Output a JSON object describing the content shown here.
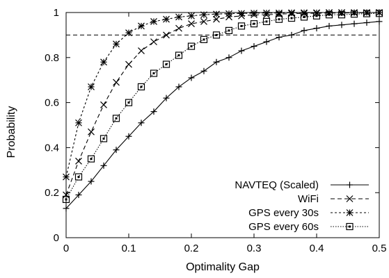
{
  "chart_data": {
    "type": "line",
    "title": "",
    "xlabel": "Optimality Gap",
    "ylabel": "Probability",
    "xlim": [
      0,
      0.5
    ],
    "ylim": [
      0,
      1
    ],
    "xticks": [
      "0",
      "0.1",
      "0.2",
      "0.3",
      "0.4",
      "0.5"
    ],
    "yticks": [
      "0",
      "0.2",
      "0.4",
      "0.6",
      "0.8",
      "1"
    ],
    "grid": false,
    "legend_position": "bottom-right",
    "x": [
      0,
      0.02,
      0.04,
      0.06,
      0.08,
      0.1,
      0.12,
      0.14,
      0.16,
      0.18,
      0.2,
      0.22,
      0.24,
      0.26,
      0.28,
      0.3,
      0.32,
      0.34,
      0.36,
      0.38,
      0.4,
      0.42,
      0.44,
      0.46,
      0.48,
      0.5
    ],
    "reference_line": {
      "y": 0.9,
      "style": "dashed"
    },
    "series": [
      {
        "name": "NAVTEQ (Scaled)",
        "marker": "plus",
        "dash": "none",
        "values": [
          0.13,
          0.19,
          0.25,
          0.32,
          0.39,
          0.45,
          0.51,
          0.56,
          0.62,
          0.67,
          0.71,
          0.74,
          0.78,
          0.8,
          0.83,
          0.85,
          0.87,
          0.89,
          0.9,
          0.92,
          0.93,
          0.94,
          0.945,
          0.95,
          0.955,
          0.96
        ]
      },
      {
        "name": "WiFi",
        "marker": "cross",
        "dash": "dashed",
        "values": [
          0.19,
          0.34,
          0.47,
          0.59,
          0.69,
          0.77,
          0.83,
          0.87,
          0.9,
          0.93,
          0.95,
          0.96,
          0.97,
          0.98,
          0.985,
          0.99,
          0.99,
          0.993,
          0.995,
          0.996,
          0.997,
          0.998,
          0.998,
          0.999,
          0.999,
          1.0
        ]
      },
      {
        "name": "GPS every 30s",
        "marker": "star",
        "dash": "dotted",
        "values": [
          0.27,
          0.51,
          0.67,
          0.78,
          0.86,
          0.91,
          0.94,
          0.96,
          0.97,
          0.98,
          0.985,
          0.99,
          0.993,
          0.995,
          0.996,
          0.997,
          0.998,
          0.998,
          0.999,
          0.999,
          0.999,
          1.0,
          1.0,
          1.0,
          1.0,
          1.0
        ]
      },
      {
        "name": "GPS every 60s",
        "marker": "square",
        "dash": "fine-dotted",
        "values": [
          0.17,
          0.27,
          0.35,
          0.44,
          0.53,
          0.6,
          0.67,
          0.73,
          0.77,
          0.81,
          0.85,
          0.88,
          0.9,
          0.92,
          0.94,
          0.95,
          0.96,
          0.97,
          0.975,
          0.98,
          0.985,
          0.99,
          0.99,
          0.993,
          0.995,
          0.996
        ]
      }
    ]
  }
}
